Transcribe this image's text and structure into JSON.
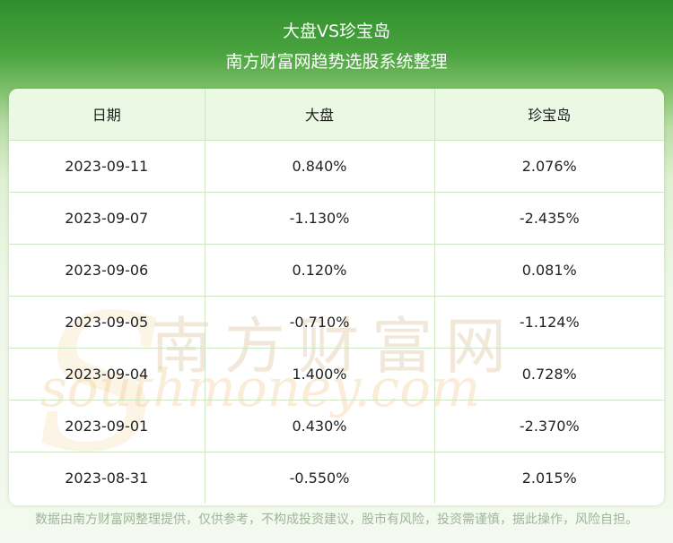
{
  "header": {
    "title": "大盘VS珍宝岛",
    "subtitle": "南方财富网趋势选股系统整理"
  },
  "table": {
    "columns": [
      "日期",
      "大盘",
      "珍宝岛"
    ],
    "rows": [
      [
        "2023-09-11",
        "0.840%",
        "2.076%"
      ],
      [
        "2023-09-07",
        "-1.130%",
        "-2.435%"
      ],
      [
        "2023-09-06",
        "0.120%",
        "0.081%"
      ],
      [
        "2023-09-05",
        "-0.710%",
        "-1.124%"
      ],
      [
        "2023-09-04",
        "1.400%",
        "0.728%"
      ],
      [
        "2023-09-01",
        "0.430%",
        "-2.370%"
      ],
      [
        "2023-08-31",
        "-0.550%",
        "2.015%"
      ]
    ]
  },
  "watermark": {
    "cn": "南方财富网",
    "en": "southmoney.com"
  },
  "footer": {
    "disclaimer": "数据由南方财富网整理提供，仅供参考，不构成投资建议，股市有风险，投资需谨慎，据此操作，风险自担。"
  },
  "colors": {
    "header_green": "#2f8f2d",
    "table_header_bg": "#eaf8e4",
    "grid_line": "#cfe6c4"
  }
}
